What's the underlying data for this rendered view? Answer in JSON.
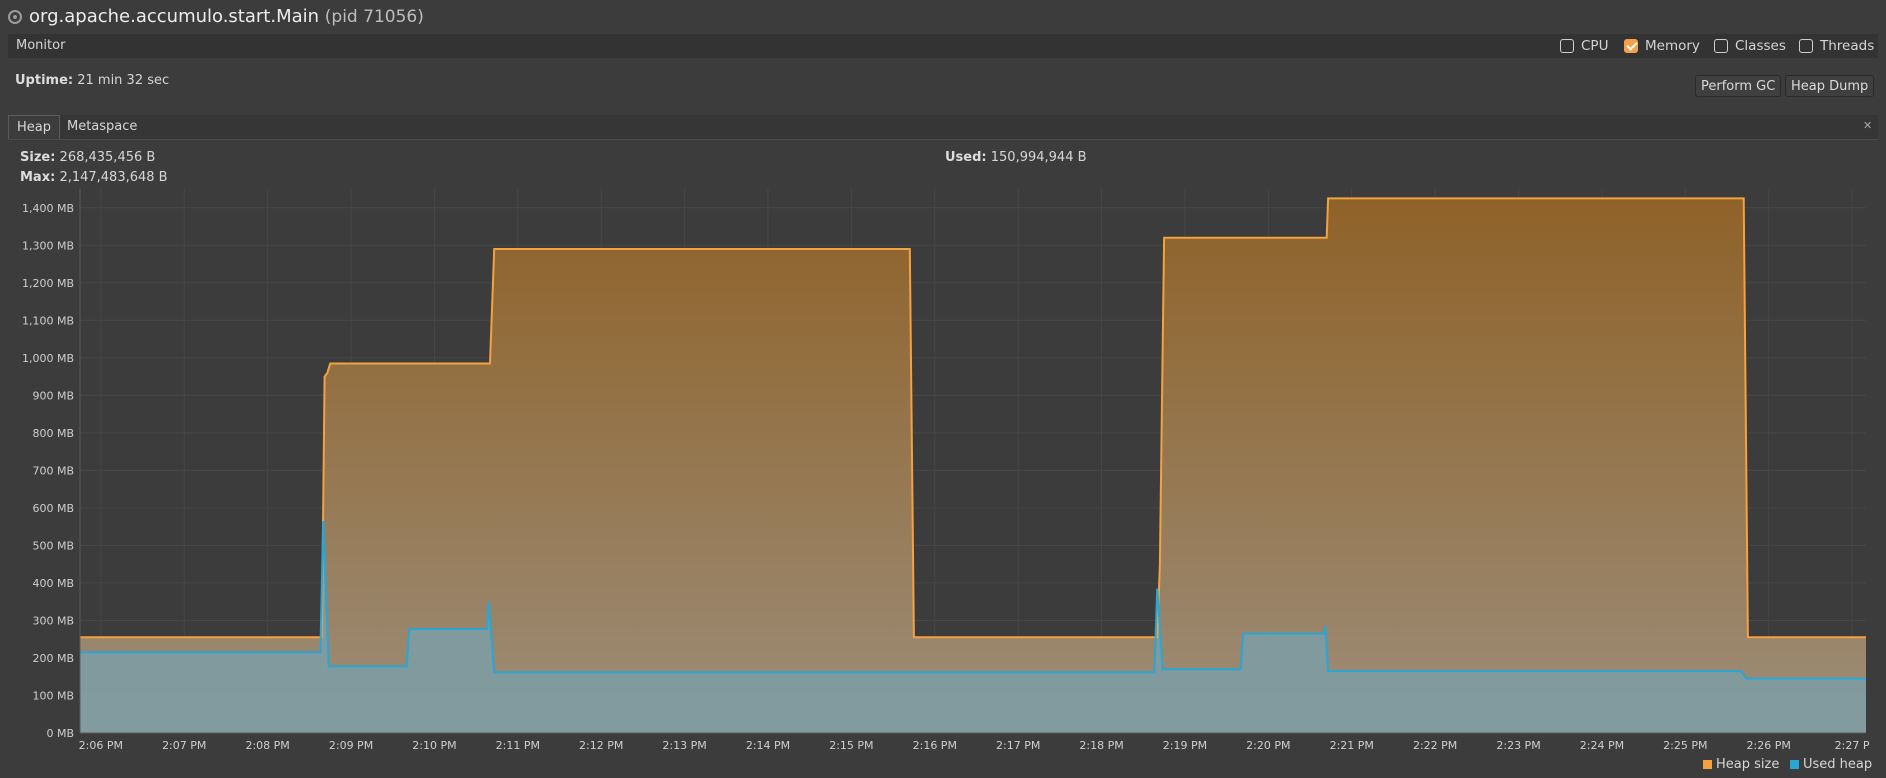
{
  "window": {
    "title": "org.apache.accumulo.start.Main",
    "pid_text": "(pid 71056)"
  },
  "monitor": {
    "label": "Monitor",
    "checkboxes": [
      {
        "label": "CPU",
        "checked": false
      },
      {
        "label": "Memory",
        "checked": true
      },
      {
        "label": "Classes",
        "checked": false
      },
      {
        "label": "Threads",
        "checked": false
      }
    ]
  },
  "uptime": {
    "label": "Uptime:",
    "value": "21 min 32 sec"
  },
  "buttons": {
    "gc": "Perform GC",
    "dump": "Heap Dump"
  },
  "tabs": [
    {
      "label": "Heap",
      "active": true
    },
    {
      "label": "Metaspace",
      "active": false
    }
  ],
  "heap_info": {
    "size_label": "Size:",
    "size_value": "268,435,456 B",
    "max_label": "Max:",
    "max_value": "2,147,483,648 B",
    "used_label": "Used:",
    "used_value": "150,994,944 B"
  },
  "colors": {
    "heap_size": "#f4a23f",
    "used_heap": "#29a6d6",
    "accent": "#f4a24a"
  },
  "chart_data": {
    "type": "area",
    "xlabel": "",
    "ylabel": "",
    "ylim": [
      0,
      1450
    ],
    "yticks": [
      0,
      100,
      200,
      300,
      400,
      500,
      600,
      700,
      800,
      900,
      1000,
      1100,
      1200,
      1300,
      1400
    ],
    "ytick_labels": [
      "0 MB",
      "100 MB",
      "200 MB",
      "300 MB",
      "400 MB",
      "500 MB",
      "600 MB",
      "700 MB",
      "800 MB",
      "900 MB",
      "1,000 MB",
      "1,100 MB",
      "1,200 MB",
      "1,300 MB",
      "1,400 MB"
    ],
    "xlim": [
      "2:05:45 PM",
      "2:27:10 PM"
    ],
    "xticks": [
      "2:06 PM",
      "2:07 PM",
      "2:08 PM",
      "2:09 PM",
      "2:10 PM",
      "2:11 PM",
      "2:12 PM",
      "2:13 PM",
      "2:14 PM",
      "2:15 PM",
      "2:16 PM",
      "2:17 PM",
      "2:18 PM",
      "2:19 PM",
      "2:20 PM",
      "2:21 PM",
      "2:22 PM",
      "2:23 PM",
      "2:24 PM",
      "2:25 PM",
      "2:26 PM",
      "2:27 P"
    ],
    "grid": true,
    "legend_position": "bottom-right",
    "series": [
      {
        "name": "Heap size",
        "points": [
          [
            "2:05:45 PM",
            255
          ],
          [
            "2:08:39 PM",
            255
          ],
          [
            "2:08:41 PM",
            950
          ],
          [
            "2:08:43 PM",
            960
          ],
          [
            "2:08:45 PM",
            985
          ],
          [
            "2:10:40 PM",
            985
          ],
          [
            "2:10:43 PM",
            1290
          ],
          [
            "2:15:42 PM",
            1290
          ],
          [
            "2:15:45 PM",
            255
          ],
          [
            "2:18:40 PM",
            255
          ],
          [
            "2:18:42 PM",
            450
          ],
          [
            "2:18:45 PM",
            1320
          ],
          [
            "2:20:42 PM",
            1320
          ],
          [
            "2:20:43 PM",
            1425
          ],
          [
            "2:25:42 PM",
            1425
          ],
          [
            "2:25:45 PM",
            255
          ],
          [
            "2:27:10 PM",
            255
          ]
        ]
      },
      {
        "name": "Used heap",
        "points": [
          [
            "2:05:45 PM",
            215
          ],
          [
            "2:08:38 PM",
            215
          ],
          [
            "2:08:40 PM",
            565
          ],
          [
            "2:08:44 PM",
            178
          ],
          [
            "2:09:40 PM",
            178
          ],
          [
            "2:09:42 PM",
            277
          ],
          [
            "2:10:38 PM",
            277
          ],
          [
            "2:10:39 PM",
            350
          ],
          [
            "2:10:43 PM",
            162
          ],
          [
            "2:18:38 PM",
            162
          ],
          [
            "2:18:40 PM",
            385
          ],
          [
            "2:18:44 PM",
            170
          ],
          [
            "2:19:40 PM",
            170
          ],
          [
            "2:19:42 PM",
            265
          ],
          [
            "2:20:40 PM",
            265
          ],
          [
            "2:20:41 PM",
            285
          ],
          [
            "2:20:43 PM",
            165
          ],
          [
            "2:25:40 PM",
            165
          ],
          [
            "2:25:44 PM",
            145
          ],
          [
            "2:27:10 PM",
            145
          ]
        ]
      }
    ]
  }
}
